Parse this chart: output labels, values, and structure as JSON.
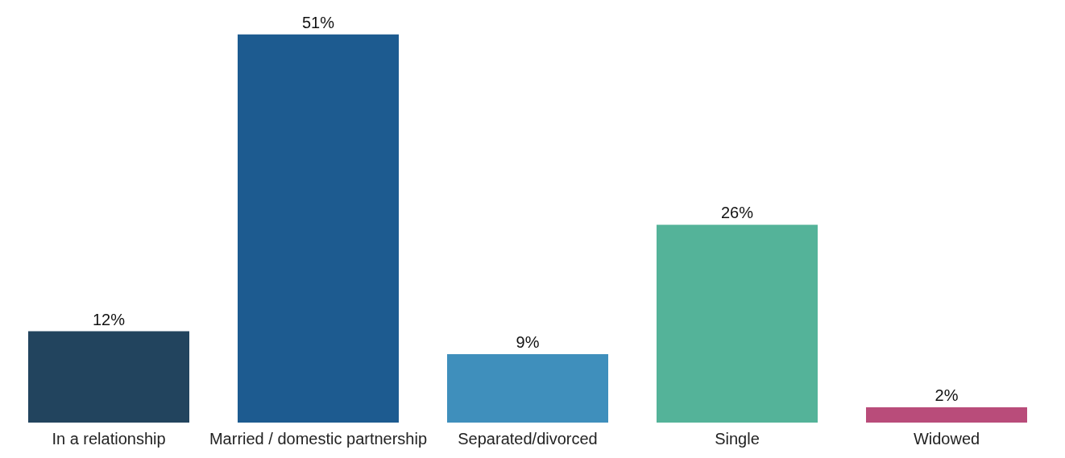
{
  "chart_data": {
    "type": "bar",
    "categories": [
      "In a relationship",
      "Married / domestic partnership",
      "Separated/divorced",
      "Single",
      "Widowed"
    ],
    "values": [
      12,
      51,
      9,
      26,
      2
    ],
    "value_labels": [
      "12%",
      "51%",
      "9%",
      "26%",
      "2%"
    ],
    "colors": [
      "#22445e",
      "#1d5b90",
      "#3f8fbc",
      "#54b399",
      "#b94c7a"
    ]
  }
}
